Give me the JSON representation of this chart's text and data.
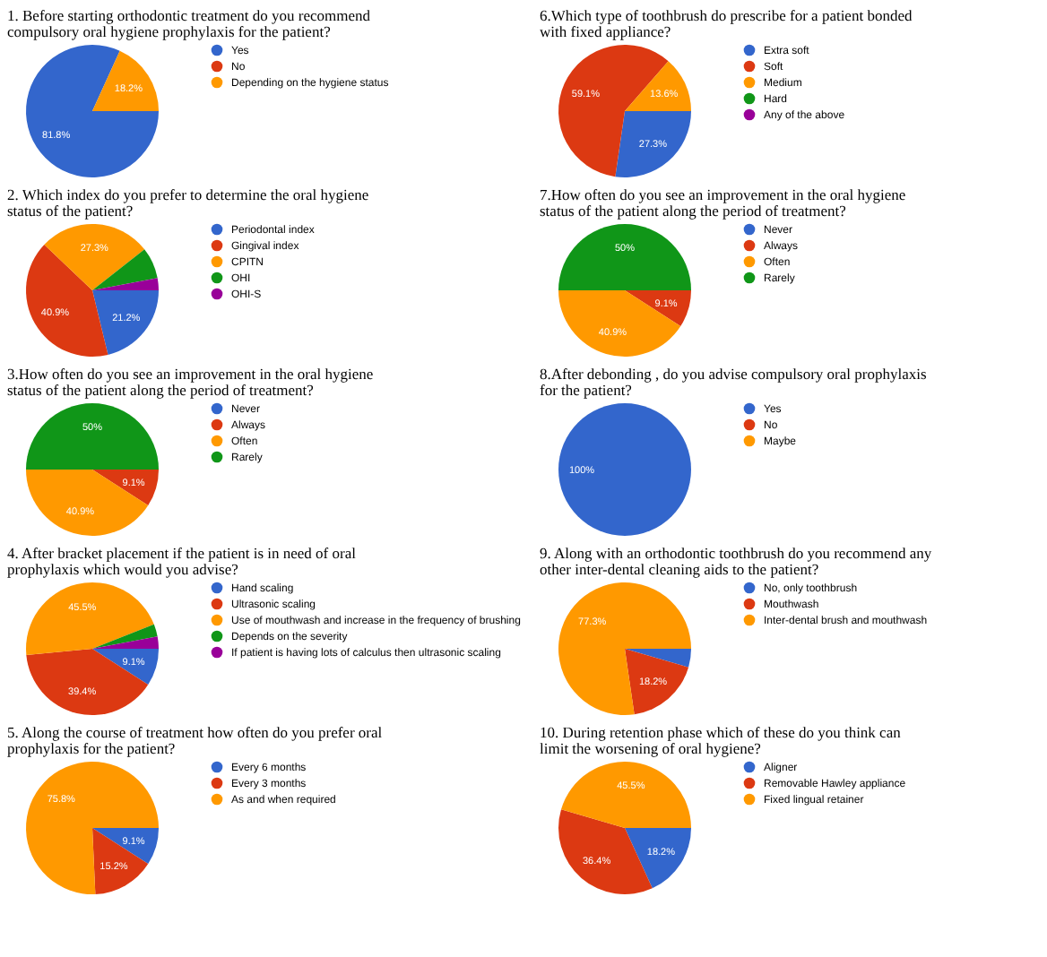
{
  "chart_data": [
    {
      "type": "pie",
      "title": "1. Before starting orthodontic treatment do you recommend compulsory oral hygiene prophylaxis for the patient?",
      "categories": [
        "Yes",
        "No",
        "Depending on the hygiene status"
      ],
      "values": [
        81.8,
        0,
        18.2
      ],
      "colors": [
        "#3366cc",
        "#dc3912",
        "#ff9900"
      ],
      "value_labels": [
        "81.8%",
        null,
        "18.2%"
      ],
      "legend": "right"
    },
    {
      "type": "pie",
      "title": "6.Which type of toothbrush do prescribe for a patient bonded with fixed appliance?",
      "categories": [
        "Extra soft",
        "Soft",
        "Medium",
        "Hard",
        "Any of the above"
      ],
      "values": [
        27.3,
        59.1,
        13.6,
        0,
        0
      ],
      "colors": [
        "#3366cc",
        "#dc3912",
        "#ff9900",
        "#109618",
        "#990099"
      ],
      "value_labels": [
        "27.3%",
        "59.1%",
        "13.6%",
        null,
        null
      ],
      "legend": "right"
    },
    {
      "type": "pie",
      "title": "2. Which index do you prefer to determine the oral hygiene status of the patient?",
      "categories": [
        "Periodontal index",
        "Gingival index",
        "CPITN",
        "OHI",
        "OHI-S"
      ],
      "values": [
        21.2,
        40.9,
        27.3,
        7.6,
        3.0
      ],
      "colors": [
        "#3366cc",
        "#dc3912",
        "#ff9900",
        "#109618",
        "#990099"
      ],
      "value_labels": [
        "21.2%",
        "40.9%",
        "27.3%",
        null,
        null
      ],
      "legend": "right"
    },
    {
      "type": "pie",
      "title": "7.How often do you see an improvement in the oral hygiene status of the patient along the period of treatment?",
      "categories": [
        "Never",
        "Always",
        "Often",
        "Rarely"
      ],
      "values": [
        0,
        9.1,
        40.9,
        50.0
      ],
      "colors": [
        "#3366cc",
        "#dc3912",
        "#ff9900",
        "#109618"
      ],
      "value_labels": [
        null,
        "9.1%",
        "40.9%",
        "50%"
      ],
      "legend": "right"
    },
    {
      "type": "pie",
      "title": "3.How often do you see an improvement in the oral hygiene status of the patient along the period of treatment?",
      "categories": [
        "Never",
        "Always",
        "Often",
        "Rarely"
      ],
      "values": [
        0,
        9.1,
        40.9,
        50.0
      ],
      "colors": [
        "#3366cc",
        "#dc3912",
        "#ff9900",
        "#109618"
      ],
      "value_labels": [
        null,
        "9.1%",
        "40.9%",
        "50%"
      ],
      "legend": "right"
    },
    {
      "type": "pie",
      "title": "8.After debonding , do you advise compulsory oral prophylaxis for the patient?",
      "categories": [
        "Yes",
        "No",
        "Maybe"
      ],
      "values": [
        100,
        0,
        0
      ],
      "colors": [
        "#3366cc",
        "#dc3912",
        "#ff9900"
      ],
      "value_labels": [
        "100%",
        null,
        null
      ],
      "legend": "right"
    },
    {
      "type": "pie",
      "title": "4. After bracket placement if the patient is in need of oral prophylaxis which would you advise?",
      "categories": [
        "Hand scaling",
        "Ultrasonic scaling",
        "Use of mouthwash and increase in the frequency of brushing",
        "Depends on the severity",
        "If patient is having lots of calculus then ultrasonic scaling"
      ],
      "values": [
        9.1,
        39.4,
        45.5,
        3.0,
        3.0
      ],
      "colors": [
        "#3366cc",
        "#dc3912",
        "#ff9900",
        "#109618",
        "#990099"
      ],
      "value_labels": [
        "9.1%",
        "39.4%",
        "45.5%",
        null,
        null
      ],
      "legend": "right"
    },
    {
      "type": "pie",
      "title": "9. Along with an orthodontic toothbrush do you recommend any other inter-dental cleaning aids to the patient?",
      "categories": [
        "No, only toothbrush",
        "Mouthwash",
        "Inter-dental brush and mouthwash"
      ],
      "values": [
        4.5,
        18.2,
        77.3
      ],
      "colors": [
        "#3366cc",
        "#dc3912",
        "#ff9900"
      ],
      "value_labels": [
        null,
        "18.2%",
        "77.3%"
      ],
      "legend": "right"
    },
    {
      "type": "pie",
      "title": "5. Along the course of treatment how often do you prefer oral prophylaxis for the patient?",
      "categories": [
        "Every 6 months",
        "Every 3 months",
        "As and when required"
      ],
      "values": [
        9.1,
        15.2,
        75.8
      ],
      "colors": [
        "#3366cc",
        "#dc3912",
        "#ff9900"
      ],
      "value_labels": [
        "9.1%",
        "15.2%",
        "75.8%"
      ],
      "legend": "right"
    },
    {
      "type": "pie",
      "title": "10. During retention phase which of these do you think can limit the worsening of oral hygiene?",
      "categories": [
        "Aligner",
        "Removable Hawley appliance",
        "Fixed lingual retainer"
      ],
      "values": [
        18.2,
        36.4,
        45.5
      ],
      "colors": [
        "#3366cc",
        "#dc3912",
        "#ff9900"
      ],
      "value_labels": [
        "18.2%",
        "36.4%",
        "45.5%"
      ],
      "legend": "right"
    }
  ]
}
